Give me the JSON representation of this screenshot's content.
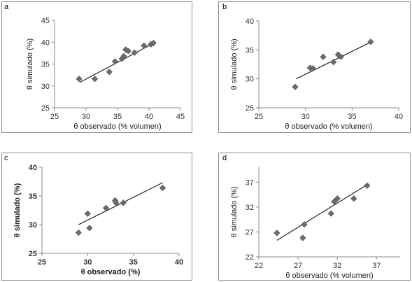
{
  "chart_data": [
    {
      "panel": "a",
      "type": "scatter",
      "xlabel": "θ observado (% volumen)",
      "ylabel": "θ simulado (%)",
      "xlim": [
        25,
        45
      ],
      "ylim": [
        25,
        45
      ],
      "xticks": [
        "25",
        "30",
        "35",
        "40",
        "45"
      ],
      "yticks": [
        "25",
        "30",
        "35",
        "40",
        "45"
      ],
      "points": [
        {
          "x": 28.9,
          "y": 31.6
        },
        {
          "x": 31.4,
          "y": 31.6
        },
        {
          "x": 33.7,
          "y": 33.2
        },
        {
          "x": 34.6,
          "y": 35.6
        },
        {
          "x": 35.7,
          "y": 36.2
        },
        {
          "x": 36.0,
          "y": 36.8
        },
        {
          "x": 36.3,
          "y": 38.3
        },
        {
          "x": 36.7,
          "y": 38.0
        },
        {
          "x": 37.7,
          "y": 37.6
        },
        {
          "x": 39.2,
          "y": 39.2
        },
        {
          "x": 40.3,
          "y": 39.5
        },
        {
          "x": 40.7,
          "y": 39.8
        }
      ],
      "trend": [
        {
          "x": 29.0,
          "y": 30.8
        },
        {
          "x": 40.8,
          "y": 39.8
        }
      ]
    },
    {
      "panel": "b",
      "type": "scatter",
      "xlabel": "θ observado (% volumen)",
      "ylabel": "θ simulado (%)",
      "xlim": [
        25,
        40
      ],
      "ylim": [
        25,
        40
      ],
      "xticks": [
        "25",
        "30",
        "35",
        "40"
      ],
      "yticks": [
        "25",
        "30",
        "35",
        "40"
      ],
      "points": [
        {
          "x": 28.9,
          "y": 28.6
        },
        {
          "x": 30.5,
          "y": 31.9
        },
        {
          "x": 30.8,
          "y": 31.8
        },
        {
          "x": 31.9,
          "y": 33.8
        },
        {
          "x": 33.0,
          "y": 32.9
        },
        {
          "x": 33.5,
          "y": 34.2
        },
        {
          "x": 33.8,
          "y": 33.8
        },
        {
          "x": 37.0,
          "y": 36.4
        }
      ],
      "trend": [
        {
          "x": 29.0,
          "y": 30.0
        },
        {
          "x": 37.2,
          "y": 36.5
        }
      ]
    },
    {
      "panel": "c",
      "type": "scatter",
      "xlabel": "θ observado (%)",
      "ylabel": "θ simulado (%)",
      "xlim": [
        25,
        40
      ],
      "ylim": [
        25,
        40
      ],
      "xticks": [
        "25",
        "30",
        "35",
        "40"
      ],
      "yticks": [
        "25",
        "30",
        "35",
        "40"
      ],
      "points": [
        {
          "x": 29.0,
          "y": 28.6
        },
        {
          "x": 30.0,
          "y": 31.9
        },
        {
          "x": 30.2,
          "y": 29.4
        },
        {
          "x": 32.0,
          "y": 32.9
        },
        {
          "x": 33.0,
          "y": 34.2
        },
        {
          "x": 33.1,
          "y": 33.8
        },
        {
          "x": 33.9,
          "y": 33.8
        },
        {
          "x": 38.2,
          "y": 36.4
        }
      ],
      "trend": [
        {
          "x": 29.0,
          "y": 30.0
        },
        {
          "x": 38.2,
          "y": 37.3
        }
      ]
    },
    {
      "panel": "d",
      "type": "scatter",
      "xlabel": "θ observado (% volumen)",
      "ylabel": "θ simulado (%)",
      "xlim": [
        22,
        40
      ],
      "ylim": [
        22,
        40
      ],
      "xticks": [
        "22",
        "27",
        "32",
        "37"
      ],
      "yticks": [
        "22",
        "27",
        "32",
        "37"
      ],
      "points": [
        {
          "x": 24.3,
          "y": 26.8
        },
        {
          "x": 27.6,
          "y": 25.8
        },
        {
          "x": 27.8,
          "y": 28.5
        },
        {
          "x": 31.2,
          "y": 30.7
        },
        {
          "x": 31.6,
          "y": 33.1
        },
        {
          "x": 32.0,
          "y": 33.7
        },
        {
          "x": 34.1,
          "y": 33.7
        },
        {
          "x": 35.8,
          "y": 36.3
        }
      ],
      "trend": [
        {
          "x": 24.3,
          "y": 25.3
        },
        {
          "x": 35.8,
          "y": 36.5
        }
      ]
    }
  ]
}
